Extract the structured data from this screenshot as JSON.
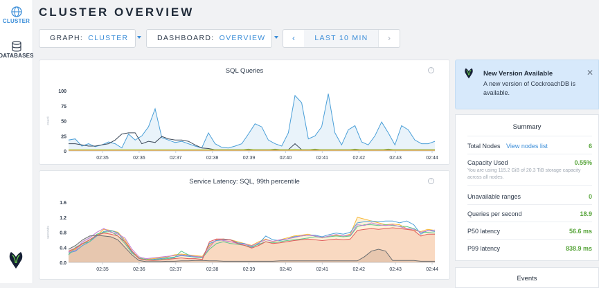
{
  "nav": {
    "cluster_label": "CLUSTER",
    "databases_label": "DATABASES"
  },
  "page": {
    "title": "CLUSTER OVERVIEW"
  },
  "controls": {
    "graph_label": "GRAPH:",
    "graph_value": "CLUSTER",
    "dashboard_label": "DASHBOARD:",
    "dashboard_value": "OVERVIEW",
    "time_prev": "‹",
    "time_range": "LAST 10 MIN",
    "time_next": "›"
  },
  "colors": {
    "accent": "#3a8dd8",
    "positive": "#57a43a",
    "alert_bg": "#d7e9fb"
  },
  "chart_data": [
    {
      "type": "area",
      "title": "SQL Queries",
      "ylabel": "count",
      "xlabel": "",
      "ylim": [
        0,
        100
      ],
      "yticks": [
        "100",
        "75",
        "50",
        "25",
        "0"
      ],
      "ytick_values": [
        100,
        75,
        50,
        25,
        0
      ],
      "xticks": [
        "02:35",
        "02:36",
        "02:37",
        "02:38",
        "02:39",
        "02:40",
        "02:41",
        "02:42",
        "02:43",
        "02:44"
      ],
      "series": [
        {
          "name": "series-1",
          "color": "#4a9fd8",
          "values": [
            18,
            20,
            8,
            12,
            7,
            10,
            15,
            12,
            5,
            28,
            18,
            25,
            40,
            70,
            22,
            18,
            14,
            16,
            12,
            8,
            5,
            30,
            12,
            6,
            5,
            8,
            12,
            28,
            45,
            40,
            18,
            12,
            8,
            30,
            92,
            80,
            20,
            25,
            40,
            95,
            30,
            10,
            35,
            42,
            15,
            10,
            25,
            48,
            30,
            10,
            42,
            35,
            18,
            12,
            12,
            16
          ]
        },
        {
          "name": "series-2",
          "color": "#3d4a5a",
          "values": [
            12,
            12,
            10,
            8,
            8,
            10,
            12,
            18,
            28,
            30,
            30,
            12,
            16,
            14,
            24,
            20,
            18,
            18,
            16,
            10,
            5,
            4,
            2,
            2,
            2,
            2,
            2,
            2,
            2,
            2,
            2,
            2,
            2,
            2,
            12,
            2,
            2,
            2,
            2,
            2,
            2,
            2,
            2,
            2,
            2,
            2,
            2,
            2,
            2,
            2,
            2,
            2,
            2,
            2,
            2,
            2
          ]
        },
        {
          "name": "series-3",
          "color": "#9fc73a",
          "values": [
            2,
            2,
            2,
            2,
            2,
            2,
            2,
            2,
            2,
            2,
            2,
            2,
            2,
            2,
            2,
            2,
            2,
            2,
            2,
            2,
            2,
            2,
            2,
            2,
            2,
            2,
            2,
            3,
            2,
            2,
            2,
            3,
            2,
            2,
            3,
            2,
            2,
            3,
            2,
            2,
            2,
            2,
            2,
            3,
            2,
            2,
            2,
            2,
            3,
            2,
            2,
            2,
            2,
            2,
            2,
            2
          ]
        },
        {
          "name": "series-4",
          "color": "#f2a93b",
          "values": [
            1,
            1,
            1,
            1,
            1,
            1,
            1,
            1,
            1,
            1,
            1,
            1,
            1,
            1,
            1,
            1,
            1,
            1,
            1,
            1,
            1,
            1,
            1,
            1,
            1,
            1,
            1,
            1,
            1,
            1,
            1,
            1,
            1,
            1,
            1,
            1,
            1,
            1,
            1,
            1,
            1,
            1,
            1,
            1,
            1,
            1,
            1,
            1,
            1,
            1,
            1,
            1,
            1,
            1,
            1,
            1
          ]
        }
      ]
    },
    {
      "type": "area",
      "title": "Service Latency: SQL, 99th percentile",
      "ylabel": "seconds",
      "xlabel": "",
      "ylim": [
        0,
        1.6
      ],
      "yticks": [
        "1.6",
        "1.2",
        "0.8",
        "0.4",
        "0.0"
      ],
      "ytick_values": [
        1.6,
        1.2,
        0.8,
        0.4,
        0.0
      ],
      "xticks": [
        "02:35",
        "02:36",
        "02:37",
        "02:38",
        "02:39",
        "02:40",
        "02:41",
        "02:42",
        "02:43",
        "02:44"
      ],
      "series": [
        {
          "name": "series-1",
          "color": "#f7b733",
          "values": [
            0.3,
            0.35,
            0.5,
            0.6,
            0.72,
            0.88,
            0.85,
            0.8,
            0.6,
            0.3,
            0.12,
            0.08,
            0.1,
            0.12,
            0.14,
            0.2,
            0.22,
            0.2,
            0.18,
            0.16,
            0.45,
            0.6,
            0.62,
            0.6,
            0.55,
            0.5,
            0.45,
            0.55,
            0.62,
            0.55,
            0.6,
            0.65,
            0.7,
            0.72,
            0.75,
            0.7,
            0.65,
            0.7,
            0.72,
            0.7,
            0.75,
            1.2,
            1.15,
            1.1,
            1.05,
            1.0,
            1.02,
            1.0,
            0.9,
            0.85,
            0.82,
            0.88,
            0.85
          ]
        },
        {
          "name": "series-2",
          "color": "#4a9fd8",
          "values": [
            0.25,
            0.3,
            0.45,
            0.55,
            0.7,
            0.82,
            0.85,
            0.78,
            0.55,
            0.28,
            0.1,
            0.06,
            0.08,
            0.1,
            0.12,
            0.14,
            0.18,
            0.16,
            0.14,
            0.12,
            0.5,
            0.58,
            0.6,
            0.6,
            0.52,
            0.5,
            0.4,
            0.5,
            0.7,
            0.6,
            0.58,
            0.62,
            0.68,
            0.7,
            0.72,
            0.72,
            0.68,
            0.74,
            0.78,
            0.75,
            0.8,
            1.05,
            1.08,
            1.1,
            1.08,
            1.1,
            1.1,
            1.05,
            1.1,
            1.0,
            0.75,
            0.85,
            0.82
          ]
        },
        {
          "name": "series-3",
          "color": "#5cc68d",
          "values": [
            0.2,
            0.4,
            0.5,
            0.55,
            0.75,
            0.8,
            0.82,
            0.7,
            0.5,
            0.25,
            0.12,
            0.08,
            0.06,
            0.08,
            0.1,
            0.12,
            0.3,
            0.2,
            0.15,
            0.12,
            0.35,
            0.5,
            0.55,
            0.5,
            0.48,
            0.45,
            0.42,
            0.48,
            0.55,
            0.52,
            0.55,
            0.58,
            0.6,
            0.62,
            0.65,
            0.68,
            0.66,
            0.68,
            0.7,
            0.68,
            0.7,
            0.95,
            1.0,
            1.0,
            0.98,
            1.0,
            0.98,
            0.96,
            0.95,
            0.9,
            0.8,
            0.8,
            0.78
          ]
        },
        {
          "name": "series-4",
          "color": "#c27bd4",
          "values": [
            0.28,
            0.32,
            0.55,
            0.65,
            0.8,
            0.9,
            0.8,
            0.75,
            0.65,
            0.35,
            0.15,
            0.1,
            0.12,
            0.14,
            0.16,
            0.18,
            0.2,
            0.18,
            0.16,
            0.14,
            0.4,
            0.62,
            0.58,
            0.55,
            0.5,
            0.48,
            0.44,
            0.52,
            0.6,
            0.56,
            0.6,
            0.62,
            0.66,
            0.7,
            0.72,
            0.7,
            0.66,
            0.7,
            0.74,
            0.7,
            0.72,
            1.0,
            0.98,
            1.05,
            1.0,
            0.98,
            1.0,
            0.95,
            0.9,
            0.88,
            0.8,
            0.84,
            0.86
          ]
        },
        {
          "name": "series-5",
          "color": "#e05a5a",
          "values": [
            0.3,
            0.38,
            0.5,
            0.6,
            0.72,
            0.78,
            0.75,
            0.7,
            0.55,
            0.3,
            0.1,
            0.06,
            0.05,
            0.06,
            0.08,
            0.1,
            0.12,
            0.1,
            0.1,
            0.08,
            0.55,
            0.62,
            0.62,
            0.6,
            0.5,
            0.45,
            0.38,
            0.45,
            0.55,
            0.5,
            0.52,
            0.55,
            0.58,
            0.6,
            0.62,
            0.6,
            0.58,
            0.6,
            0.62,
            0.6,
            0.62,
            0.85,
            0.88,
            0.9,
            0.88,
            0.9,
            0.92,
            0.9,
            0.88,
            0.85,
            0.7,
            0.75,
            0.75
          ]
        },
        {
          "name": "series-6",
          "color": "#6b6e70",
          "values": [
            0.35,
            0.45,
            0.6,
            0.7,
            0.72,
            0.7,
            0.68,
            0.6,
            0.4,
            0.2,
            0.05,
            0.02,
            0.02,
            0.02,
            0.03,
            0.03,
            0.04,
            0.04,
            0.05,
            0.05,
            0.04,
            0.04,
            0.03,
            0.03,
            0.03,
            0.03,
            0.03,
            0.03,
            0.03,
            0.03,
            0.04,
            0.04,
            0.04,
            0.04,
            0.04,
            0.04,
            0.04,
            0.04,
            0.04,
            0.04,
            0.04,
            0.04,
            0.15,
            0.3,
            0.35,
            0.3,
            0.05,
            0.05,
            0.05,
            0.05,
            0.03,
            0.03,
            0.03
          ]
        }
      ]
    }
  ],
  "alert": {
    "title": "New Version Available",
    "text": "A new version of CockroachDB is available.",
    "close": "✕"
  },
  "summary": {
    "title": "Summary",
    "total_nodes_label": "Total Nodes",
    "total_nodes_link": "View nodes list",
    "total_nodes_value": "6",
    "capacity_label": "Capacity Used",
    "capacity_value": "0.55%",
    "capacity_desc": "You are using 115.2 GiB of 20.3 TiB storage capacity across all nodes.",
    "unavailable_label": "Unavailable ranges",
    "unavailable_value": "0",
    "qps_label": "Queries per second",
    "qps_value": "18.9",
    "p50_label": "P50 latency",
    "p50_value": "56.6 ms",
    "p99_label": "P99 latency",
    "p99_value": "838.9 ms"
  },
  "events": {
    "title": "Events"
  }
}
